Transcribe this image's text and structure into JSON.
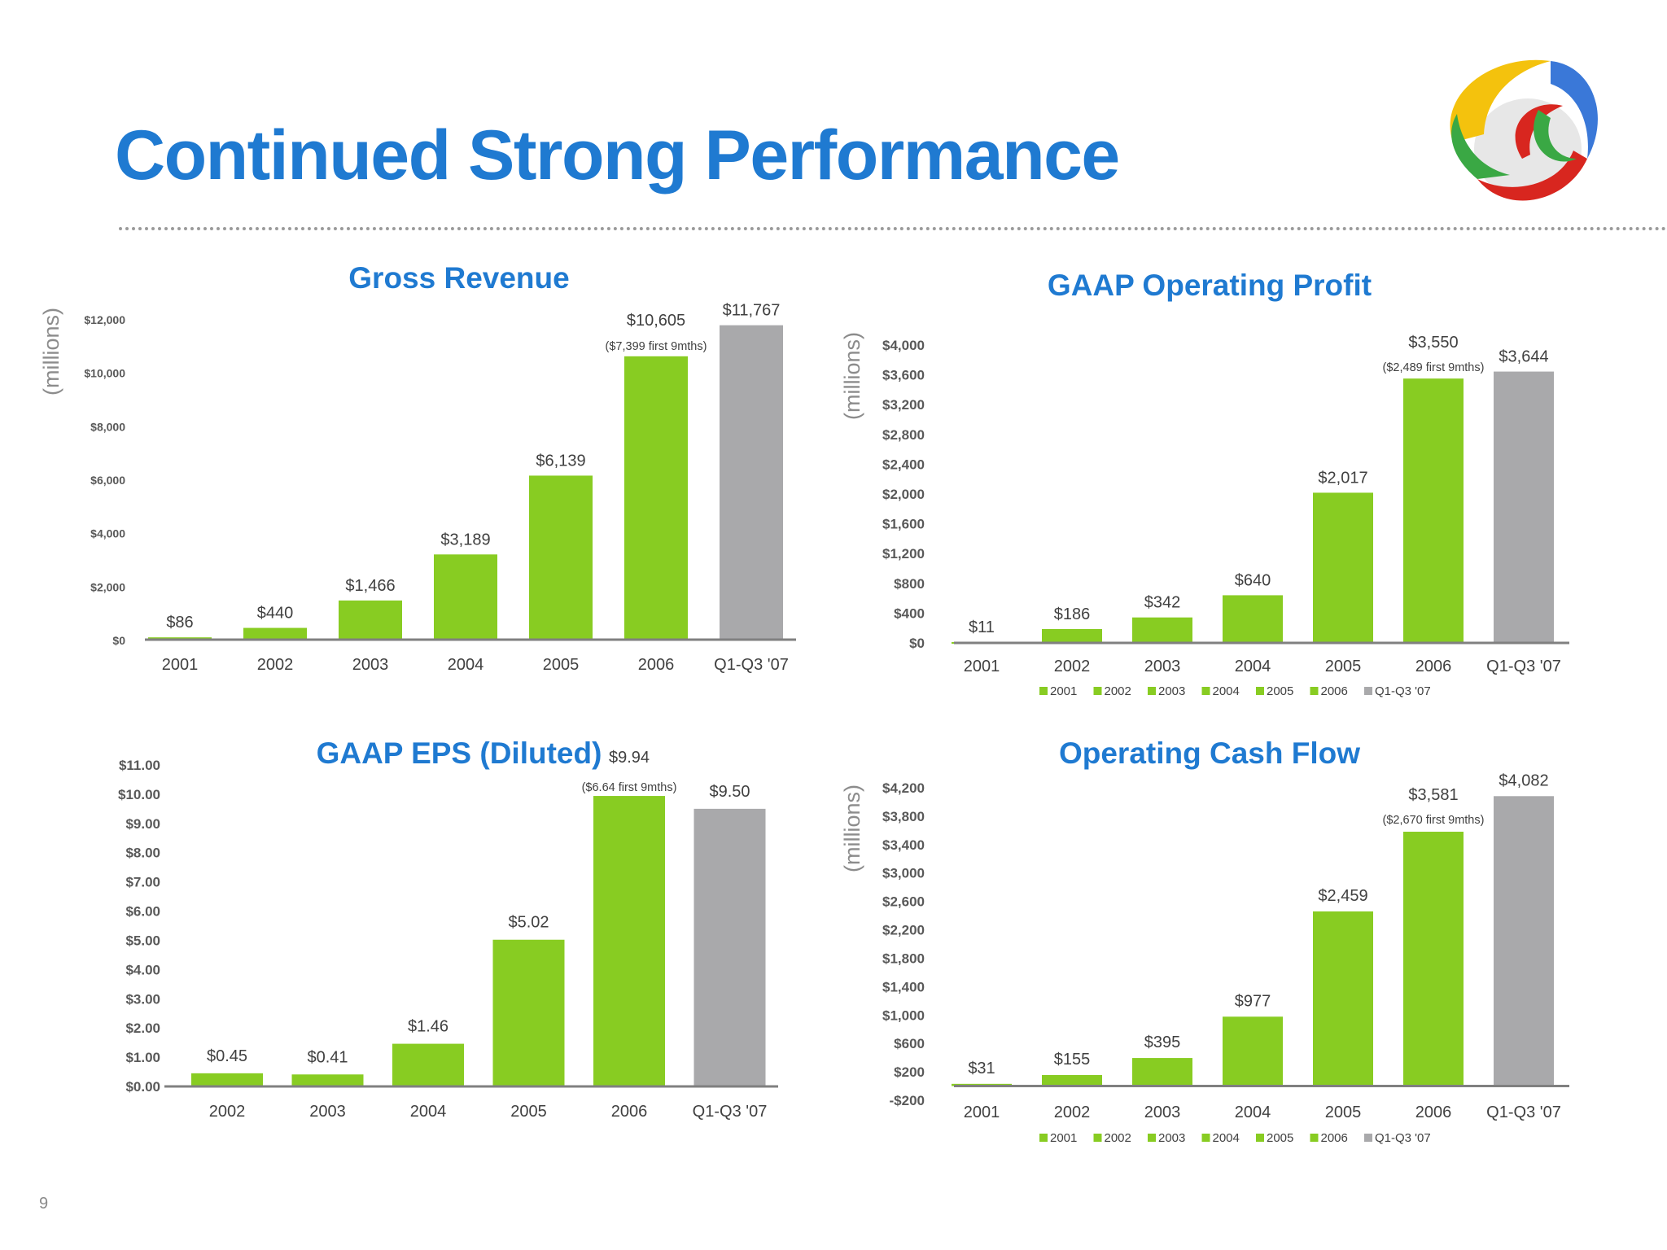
{
  "slide": {
    "title": "Continued Strong Performance",
    "page_number": "9"
  },
  "colors": {
    "title_blue": "#1f7ad1",
    "bar_green": "#88cc22",
    "bar_gray": "#a9a9ab",
    "axis": "#808080"
  },
  "logo": {
    "icon": "swirl-logo-icon"
  },
  "chart_data": [
    {
      "id": "gross-revenue",
      "type": "bar",
      "title": "Gross Revenue",
      "ylabel": "(millions)",
      "categories": [
        "2001",
        "2002",
        "2003",
        "2004",
        "2005",
        "2006",
        "Q1-Q3 '07"
      ],
      "values": [
        86,
        440,
        1466,
        3189,
        6139,
        10605,
        11767
      ],
      "value_labels": [
        "$86",
        "$440",
        "$1,466",
        "$3,189",
        "$6,139",
        "$10,605",
        "$11,767"
      ],
      "annotations": [
        "",
        "",
        "",
        "",
        "",
        "($7,399 first 9mths)",
        ""
      ],
      "bar_colors": [
        "green",
        "green",
        "green",
        "green",
        "green",
        "green",
        "gray"
      ],
      "ylim": [
        0,
        12000
      ],
      "yticks": [
        0,
        2000,
        4000,
        6000,
        8000,
        10000,
        12000
      ],
      "ytick_labels": [
        "$0",
        "$2,000",
        "$4,000",
        "$6,000",
        "$8,000",
        "$10,000",
        "$12,000"
      ],
      "legend": null,
      "grid": false
    },
    {
      "id": "gaap-operating-profit",
      "type": "bar",
      "title": "GAAP Operating Profit",
      "ylabel": "(millions)",
      "categories": [
        "2001",
        "2002",
        "2003",
        "2004",
        "2005",
        "2006",
        "Q1-Q3 '07"
      ],
      "values": [
        11,
        186,
        342,
        640,
        2017,
        3550,
        3644
      ],
      "value_labels": [
        "$11",
        "$186",
        "$342",
        "$640",
        "$2,017",
        "$3,550",
        "$3,644"
      ],
      "annotations": [
        "",
        "",
        "",
        "",
        "",
        "($2,489 first 9mths)",
        ""
      ],
      "bar_colors": [
        "green",
        "green",
        "green",
        "green",
        "green",
        "green",
        "gray"
      ],
      "ylim": [
        0,
        4000
      ],
      "yticks": [
        0,
        400,
        800,
        1200,
        1600,
        2000,
        2400,
        2800,
        3200,
        3600,
        4000
      ],
      "ytick_labels": [
        "$0",
        "$400",
        "$800",
        "$1,200",
        "$1,600",
        "$2,000",
        "$2,400",
        "$2,800",
        "$3,200",
        "$3,600",
        "$4,000"
      ],
      "legend": [
        "2001",
        "2002",
        "2003",
        "2004",
        "2005",
        "2006",
        "Q1-Q3 '07"
      ],
      "legend_position": "bottom",
      "grid": false
    },
    {
      "id": "gaap-eps-diluted",
      "type": "bar",
      "title": "GAAP EPS (Diluted)",
      "ylabel": "",
      "categories": [
        "2002",
        "2003",
        "2004",
        "2005",
        "2006",
        "Q1-Q3 '07"
      ],
      "values": [
        0.45,
        0.41,
        1.46,
        5.02,
        9.94,
        9.5
      ],
      "value_labels": [
        "$0.45",
        "$0.41",
        "$1.46",
        "$5.02",
        "$9.94",
        "$9.50"
      ],
      "annotations": [
        "",
        "",
        "",
        "",
        "($6.64 first 9mths)",
        ""
      ],
      "bar_colors": [
        "green",
        "green",
        "green",
        "green",
        "green",
        "gray"
      ],
      "ylim": [
        0,
        11
      ],
      "yticks": [
        0,
        1,
        2,
        3,
        4,
        5,
        6,
        7,
        8,
        9,
        10,
        11
      ],
      "ytick_labels": [
        "$0.00",
        "$1.00",
        "$2.00",
        "$3.00",
        "$4.00",
        "$5.00",
        "$6.00",
        "$7.00",
        "$8.00",
        "$9.00",
        "$10.00",
        "$11.00"
      ],
      "legend": null,
      "grid": false
    },
    {
      "id": "operating-cash-flow",
      "type": "bar",
      "title": "Operating Cash Flow",
      "ylabel": "(millions)",
      "categories": [
        "2001",
        "2002",
        "2003",
        "2004",
        "2005",
        "2006",
        "Q1-Q3 '07"
      ],
      "values": [
        31,
        155,
        395,
        977,
        2459,
        3581,
        4082
      ],
      "value_labels": [
        "$31",
        "$155",
        "$395",
        "$977",
        "$2,459",
        "$3,581",
        "$4,082"
      ],
      "annotations": [
        "",
        "",
        "",
        "",
        "",
        "($2,670 first 9mths)",
        ""
      ],
      "bar_colors": [
        "green",
        "green",
        "green",
        "green",
        "green",
        "green",
        "gray"
      ],
      "ylim": [
        -200,
        4200
      ],
      "yticks": [
        -200,
        200,
        600,
        1000,
        1400,
        1800,
        2200,
        2600,
        3000,
        3400,
        3800,
        4200
      ],
      "ytick_labels": [
        "-$200",
        "$200",
        "$600",
        "$1,000",
        "$1,400",
        "$1,800",
        "$2,200",
        "$2,600",
        "$3,000",
        "$3,400",
        "$3,800",
        "$4,200"
      ],
      "legend": [
        "2001",
        "2002",
        "2003",
        "2004",
        "2005",
        "2006",
        "Q1-Q3 '07"
      ],
      "legend_position": "bottom",
      "grid": false
    }
  ]
}
